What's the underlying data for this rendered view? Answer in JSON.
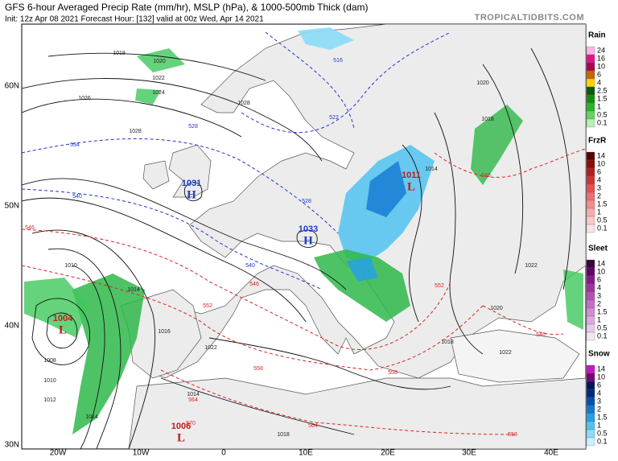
{
  "header": {
    "title": "GFS 6-hour Averaged Precip Rate (mm/hr), MSLP (hPa), & 1000-500mb Thick (dam)",
    "subtitle": "Init: 12z Apr 08 2021   Forecast Hour: [132]   valid at 00z Wed, Apr 14 2021",
    "site": "TROPICALTIDBITS.COM"
  },
  "map": {
    "lat_labels": [
      "60N",
      "50N",
      "40N",
      "30N"
    ],
    "lon_labels": [
      "20W",
      "10W",
      "0",
      "10E",
      "20E",
      "30E",
      "40E"
    ],
    "pressure_centers": [
      {
        "letter": "H",
        "value": "1033",
        "color": "#1a3fc4"
      },
      {
        "letter": "H",
        "value": "1031",
        "color": "#1a3fc4"
      },
      {
        "letter": "L",
        "value": "1004",
        "color": "#c41a1a"
      },
      {
        "letter": "L",
        "value": "1006",
        "color": "#c41a1a"
      },
      {
        "letter": "L",
        "value": "1011",
        "color": "#c41a1a"
      }
    ],
    "isobar_labels": [
      "1018",
      "1020",
      "1022",
      "1024",
      "1026",
      "1028",
      "1028",
      "1018",
      "1020",
      "1014",
      "1010",
      "1014",
      "1016",
      "1022",
      "1014",
      "1018",
      "1020",
      "1022",
      "1018",
      "1008",
      "1010",
      "1012",
      "1014",
      "1022"
    ],
    "thickness_cold": [
      "516",
      "522",
      "528",
      "534",
      "540",
      "528",
      "540"
    ],
    "thickness_warm": [
      "546",
      "546",
      "552",
      "552",
      "558",
      "558",
      "564",
      "564",
      "570",
      "546",
      "546",
      "558"
    ]
  },
  "legend": [
    {
      "title": "Rain",
      "labels": [
        "24",
        "16",
        "10",
        "6",
        "4",
        "2.5",
        "1.5",
        "1",
        "0.5",
        "0.1"
      ],
      "colors": [
        "#ffb3e6",
        "#e0148c",
        "#b0004a",
        "#c86400",
        "#ffd200",
        "#0a5a0a",
        "#148c14",
        "#28b428",
        "#64d264",
        "#b4f0b4"
      ]
    },
    {
      "title": "FrzR",
      "labels": [
        "14",
        "10",
        "6",
        "4",
        "3",
        "2",
        "1.5",
        "1",
        "0.5",
        "0.1"
      ],
      "colors": [
        "#5a0000",
        "#8c0a0a",
        "#b41e1e",
        "#d23232",
        "#e65050",
        "#f06e6e",
        "#f58c8c",
        "#f8aaaa",
        "#fac8c8",
        "#fde2e2"
      ]
    },
    {
      "title": "Sleet",
      "labels": [
        "14",
        "10",
        "6",
        "4",
        "3",
        "2",
        "1.5",
        "1",
        "0.5",
        "0.1"
      ],
      "colors": [
        "#3c003c",
        "#64006e",
        "#8c148c",
        "#a032a0",
        "#b450b4",
        "#c46ec4",
        "#d28cd2",
        "#dcaadc",
        "#e8c8e8",
        "#f4e4f4"
      ]
    },
    {
      "title": "Snow",
      "labels": [
        "14",
        "10",
        "6",
        "4",
        "3",
        "2",
        "1.5",
        "1",
        "0.5",
        "0.1"
      ],
      "colors": [
        "#c814c8",
        "#780078",
        "#00145a",
        "#00287d",
        "#0050b4",
        "#1478d2",
        "#28a0e6",
        "#50c3f0",
        "#8cdcf8",
        "#c8f0ff"
      ]
    }
  ]
}
